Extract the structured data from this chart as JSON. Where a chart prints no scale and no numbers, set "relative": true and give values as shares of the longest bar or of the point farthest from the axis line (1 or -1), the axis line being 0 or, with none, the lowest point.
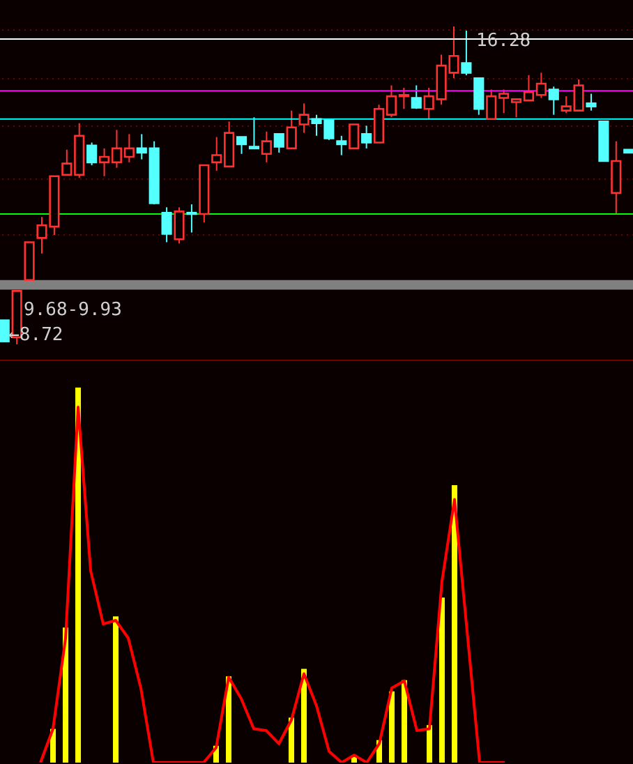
{
  "chart_data": [
    {
      "type": "candlestick",
      "categories": [
        null,
        null,
        null,
        null,
        null,
        null,
        null,
        null,
        null,
        null,
        null,
        null,
        null,
        null,
        null,
        null,
        null,
        null,
        null,
        null,
        null,
        null,
        null,
        null,
        null,
        null,
        null,
        null,
        null,
        null,
        null,
        null,
        null,
        null,
        null,
        null,
        null,
        null,
        null,
        null,
        null,
        null,
        null,
        null,
        null,
        null,
        null,
        null,
        null,
        null,
        null
      ],
      "ohlc": [
        [
          9.29,
          9.29,
          8.79,
          8.79
        ],
        [
          8.89,
          9.99,
          8.72,
          9.99
        ],
        [
          10.25,
          11.15,
          10.25,
          11.15
        ],
        [
          11.25,
          11.75,
          10.88,
          11.55
        ],
        [
          11.52,
          12.72,
          11.32,
          12.72
        ],
        [
          12.75,
          13.35,
          12.75,
          13.02
        ],
        [
          12.75,
          13.98,
          12.68,
          13.68
        ],
        [
          13.45,
          13.52,
          12.98,
          13.05
        ],
        [
          13.05,
          13.38,
          12.72,
          13.18
        ],
        [
          13.05,
          13.82,
          12.92,
          13.38
        ],
        [
          13.18,
          13.72,
          13.05,
          13.38
        ],
        [
          13.38,
          13.72,
          13.12,
          13.28
        ],
        [
          13.38,
          13.55,
          12.05,
          12.08
        ],
        [
          11.85,
          11.98,
          11.15,
          11.35
        ],
        [
          11.22,
          11.98,
          11.12,
          11.88
        ],
        [
          11.85,
          12.05,
          11.38,
          11.82
        ],
        [
          11.82,
          12.98,
          11.62,
          12.98
        ],
        [
          13.05,
          13.65,
          12.85,
          13.22
        ],
        [
          12.95,
          14.02,
          12.95,
          13.75
        ],
        [
          13.65,
          13.65,
          13.25,
          13.48
        ],
        [
          13.42,
          14.12,
          13.38,
          13.38
        ],
        [
          13.25,
          13.78,
          13.05,
          13.55
        ],
        [
          13.72,
          13.72,
          13.28,
          13.42
        ],
        [
          13.38,
          14.28,
          13.38,
          13.88
        ],
        [
          13.95,
          14.45,
          13.75,
          14.18
        ],
        [
          14.08,
          14.18,
          13.68,
          13.98
        ],
        [
          14.05,
          14.05,
          13.58,
          13.62
        ],
        [
          13.55,
          13.68,
          13.22,
          13.48
        ],
        [
          13.38,
          13.95,
          13.38,
          13.95
        ],
        [
          13.72,
          13.92,
          13.38,
          13.52
        ],
        [
          13.52,
          14.42,
          13.52,
          14.32
        ],
        [
          14.18,
          14.88,
          14.12,
          14.62
        ],
        [
          14.62,
          14.82,
          14.32,
          14.65
        ],
        [
          14.58,
          14.88,
          14.32,
          14.35
        ],
        [
          14.32,
          14.82,
          14.08,
          14.62
        ],
        [
          14.55,
          15.61,
          14.42,
          15.35
        ],
        [
          15.18,
          16.28,
          15.05,
          15.58
        ],
        [
          15.41,
          16.18,
          15.12,
          15.18
        ],
        [
          15.05,
          15.05,
          14.18,
          14.32
        ],
        [
          14.08,
          14.78,
          14.08,
          14.62
        ],
        [
          14.58,
          14.78,
          14.22,
          14.68
        ],
        [
          14.48,
          14.55,
          14.12,
          14.55
        ],
        [
          14.52,
          15.12,
          14.52,
          14.72
        ],
        [
          14.65,
          15.18,
          14.58,
          14.92
        ],
        [
          14.78,
          14.85,
          14.18,
          14.55
        ],
        [
          14.28,
          14.62,
          14.22,
          14.38
        ],
        [
          14.28,
          15.02,
          14.28,
          14.88
        ],
        [
          14.45,
          14.68,
          14.28,
          14.38
        ],
        [
          14.02,
          14.02,
          13.08,
          13.08
        ],
        [
          12.32,
          13.55,
          11.82,
          13.08
        ],
        [
          13.35,
          13.35,
          13.28,
          13.28
        ]
      ],
      "colors": [
        "#54ffff",
        "#ff3232",
        "#ff3232",
        "#ff3232",
        "#ff3232",
        "#ff3232",
        "#ff3232",
        "#54ffff",
        "#ff3232",
        "#ff3232",
        "#ff3232",
        "#54ffff",
        "#54ffff",
        "#54ffff",
        "#ff3232",
        "#54ffff",
        "#ff3232",
        "#ff3232",
        "#ff3232",
        "#54ffff",
        "#54ffff",
        "#ff3232",
        "#54ffff",
        "#ff3232",
        "#ff3232",
        "#54ffff",
        "#54ffff",
        "#54ffff",
        "#ff3232",
        "#54ffff",
        "#ff3232",
        "#ff3232",
        "#ff3232",
        "#54ffff",
        "#ff3232",
        "#ff3232",
        "#ff3232",
        "#54ffff",
        "#54ffff",
        "#ff3232",
        "#ff3232",
        "#ff3232",
        "#ff3232",
        "#ff3232",
        "#54ffff",
        "#ff3232",
        "#ff3232",
        "#54ffff",
        "#54ffff",
        "#ff3232",
        "#54ffff"
      ],
      "ref_lines": [
        {
          "axis": "y",
          "value": 15.98,
          "color": "#ffffff"
        },
        {
          "axis": "y",
          "value": 14.75,
          "color": "#ff00ff"
        },
        {
          "axis": "y",
          "value": 14.08,
          "color": "#00ffff"
        },
        {
          "axis": "y",
          "value": 11.82,
          "color": "#00ff00"
        }
      ],
      "bands": [
        {
          "axis": "y",
          "from": 10.02,
          "to": 10.25,
          "label": "9.68-9.93",
          "color": "#808080"
        }
      ],
      "annotations": [
        "16.28",
        "←8.72"
      ],
      "yticks": [
        {
          "value": 11.35,
          "label": null
        },
        {
          "value": 12.65,
          "label": null
        },
        {
          "value": 13.91,
          "label": null
        },
        {
          "value": 15.05,
          "label": null
        },
        {
          "value": 16.21,
          "label": null
        }
      ],
      "grid": "y",
      "tick_labels": false
    },
    {
      "type": "bar",
      "relative": true,
      "categories": [
        null,
        null,
        null,
        null,
        null,
        null,
        null,
        null,
        null,
        null,
        null,
        null,
        null,
        null,
        null,
        null,
        null,
        null,
        null,
        null,
        null,
        null,
        null,
        null,
        null,
        null,
        null,
        null,
        null,
        null,
        null,
        null,
        null,
        null,
        null,
        null,
        null,
        null,
        null,
        null,
        null,
        null,
        null,
        null,
        null,
        null,
        null,
        null,
        null,
        null,
        null
      ],
      "color": "#ffff00",
      "values": [
        0,
        0,
        0,
        0,
        0.09,
        0.36,
        1,
        0,
        0,
        0.39,
        0,
        0,
        0,
        0,
        0,
        0,
        0,
        0.045,
        0.23,
        0,
        0,
        0,
        0,
        0.12,
        0.25,
        0,
        0,
        0,
        0.02,
        0,
        0.06,
        0.19,
        0.22,
        0,
        0.1,
        0.44,
        0.74,
        0,
        0,
        0,
        0,
        0,
        0,
        0,
        0,
        0,
        0,
        0,
        0,
        0,
        0
      ],
      "tick_labels": false
    },
    {
      "type": "line",
      "relative": true,
      "categories": [
        null,
        null,
        null,
        null,
        null,
        null,
        null,
        null,
        null,
        null,
        null,
        null,
        null,
        null,
        null,
        null,
        null,
        null,
        null,
        null,
        null,
        null,
        null,
        null,
        null,
        null,
        null,
        null,
        null,
        null,
        null,
        null,
        null,
        null,
        null,
        null,
        null,
        null,
        null,
        null,
        null,
        null,
        null,
        null,
        null,
        null,
        null,
        null,
        null,
        null,
        null
      ],
      "color": "#ff0000",
      "values": [
        null,
        null,
        null,
        0,
        0.095,
        0.35,
        1,
        0.54,
        0.39,
        0.4,
        0.35,
        0.21,
        0,
        0,
        0,
        0,
        0,
        0.042,
        0.24,
        0.18,
        0.095,
        0.09,
        0.053,
        0.12,
        0.25,
        0.16,
        0.032,
        0,
        0.021,
        0,
        0.053,
        0.21,
        0.23,
        0.09,
        0.095,
        0.51,
        0.74,
        0.37,
        0,
        0,
        0,
        null,
        null,
        null,
        null,
        null,
        null,
        null,
        null,
        null,
        null
      ],
      "tick_labels": false
    }
  ]
}
